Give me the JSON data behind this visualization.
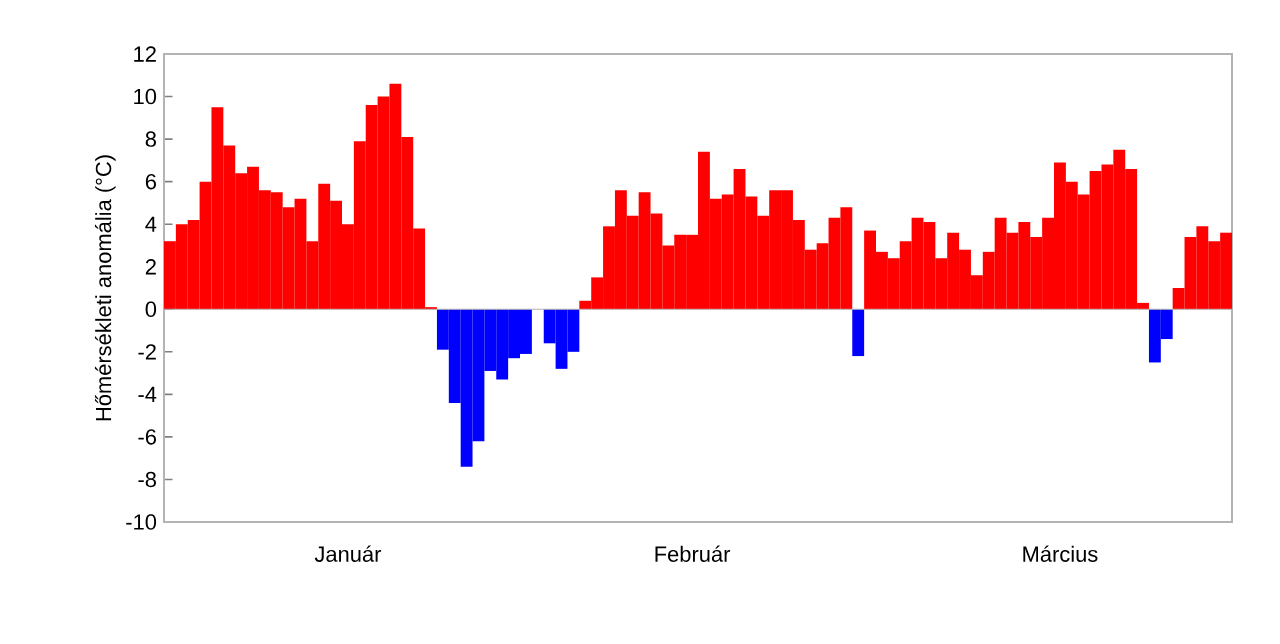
{
  "chart_data": {
    "type": "bar",
    "ylabel": "Hőmérsékleti anomália (°C)",
    "categories": [
      null,
      null,
      null,
      null,
      null,
      null,
      null,
      null,
      null,
      null,
      null,
      null,
      null,
      null,
      null,
      "Január",
      null,
      null,
      null,
      null,
      null,
      null,
      null,
      null,
      null,
      null,
      null,
      null,
      null,
      null,
      null,
      null,
      null,
      null,
      null,
      null,
      null,
      null,
      null,
      null,
      null,
      null,
      null,
      null,
      "Február",
      null,
      null,
      null,
      null,
      null,
      null,
      null,
      null,
      null,
      null,
      null,
      null,
      null,
      null,
      null,
      null,
      null,
      null,
      null,
      null,
      null,
      null,
      null,
      null,
      null,
      null,
      null,
      null,
      null,
      null,
      "Március",
      null,
      null,
      null,
      null,
      null,
      null,
      null,
      null,
      null,
      null,
      null,
      null,
      null,
      null
    ],
    "values": [
      3.2,
      4.0,
      4.2,
      6.0,
      9.5,
      7.7,
      6.4,
      6.7,
      5.6,
      5.5,
      4.8,
      5.2,
      3.2,
      5.9,
      5.1,
      4.0,
      7.9,
      9.6,
      10.0,
      10.6,
      8.1,
      3.8,
      0.1,
      -1.9,
      -4.4,
      -7.4,
      -6.2,
      -2.9,
      -3.3,
      -2.3,
      -2.1,
      null,
      -1.6,
      -2.8,
      -2.0,
      0.4,
      1.5,
      3.9,
      5.6,
      4.4,
      5.5,
      4.5,
      3.0,
      3.5,
      3.5,
      7.4,
      5.2,
      5.4,
      6.6,
      5.3,
      4.4,
      5.6,
      5.6,
      4.2,
      2.8,
      3.1,
      4.3,
      4.8,
      -2.2,
      3.7,
      2.7,
      2.4,
      3.2,
      4.3,
      4.1,
      2.4,
      3.6,
      2.8,
      1.6,
      2.7,
      4.3,
      3.6,
      4.1,
      3.4,
      4.3,
      6.9,
      6.0,
      5.4,
      6.5,
      6.8,
      7.5,
      6.6,
      0.3,
      -2.5,
      -1.4,
      1.0,
      3.4,
      3.9,
      3.2,
      3.6
    ],
    "colors": [
      "#ff0000",
      "#ff0000",
      "#ff0000",
      "#ff0000",
      "#ff0000",
      "#ff0000",
      "#ff0000",
      "#ff0000",
      "#ff0000",
      "#ff0000",
      "#ff0000",
      "#ff0000",
      "#ff0000",
      "#ff0000",
      "#ff0000",
      "#ff0000",
      "#ff0000",
      "#ff0000",
      "#ff0000",
      "#ff0000",
      "#ff0000",
      "#ff0000",
      "#ff0000",
      "#0000ff",
      "#0000ff",
      "#0000ff",
      "#0000ff",
      "#0000ff",
      "#0000ff",
      "#0000ff",
      "#0000ff",
      "#0000ff",
      "#0000ff",
      "#0000ff",
      "#0000ff",
      "#ff0000",
      "#ff0000",
      "#ff0000",
      "#ff0000",
      "#ff0000",
      "#ff0000",
      "#ff0000",
      "#ff0000",
      "#ff0000",
      "#ff0000",
      "#ff0000",
      "#ff0000",
      "#ff0000",
      "#ff0000",
      "#ff0000",
      "#ff0000",
      "#ff0000",
      "#ff0000",
      "#ff0000",
      "#ff0000",
      "#ff0000",
      "#ff0000",
      "#ff0000",
      "#0000ff",
      "#ff0000",
      "#ff0000",
      "#ff0000",
      "#ff0000",
      "#ff0000",
      "#ff0000",
      "#ff0000",
      "#ff0000",
      "#ff0000",
      "#ff0000",
      "#ff0000",
      "#ff0000",
      "#ff0000",
      "#ff0000",
      "#ff0000",
      "#ff0000",
      "#ff0000",
      "#ff0000",
      "#ff0000",
      "#ff0000",
      "#ff0000",
      "#ff0000",
      "#ff0000",
      "#ff0000",
      "#0000ff",
      "#0000ff",
      "#ff0000",
      "#ff0000",
      "#ff0000",
      "#ff0000",
      "#ff0000"
    ],
    "ylim": [
      -10,
      12
    ],
    "yticks": [
      -10,
      -8,
      -6,
      -4,
      -2,
      0,
      2,
      4,
      6,
      8,
      10,
      12
    ]
  }
}
